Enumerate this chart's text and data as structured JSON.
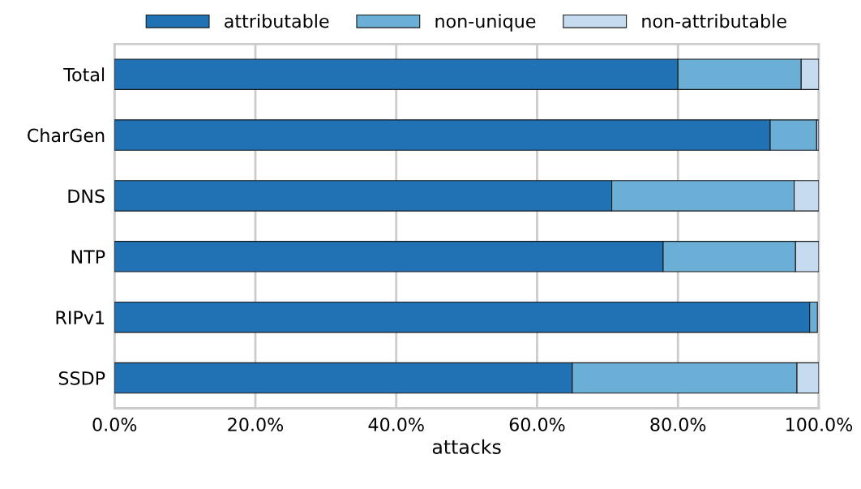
{
  "chart_data": {
    "type": "bar",
    "orientation": "horizontal",
    "stacked": true,
    "xlabel": "attacks",
    "categories": [
      "Total",
      "CharGen",
      "DNS",
      "NTP",
      "RIPv1",
      "SSDP"
    ],
    "series": [
      {
        "name": "attributable",
        "color": "#2171b5",
        "values": [
          80.0,
          93.1,
          70.6,
          77.9,
          98.7,
          65.0
        ]
      },
      {
        "name": "non-unique",
        "color": "#6baed6",
        "values": [
          17.5,
          6.6,
          25.9,
          18.8,
          1.1,
          31.9
        ]
      },
      {
        "name": "non-attributable",
        "color": "#c6dbef",
        "values": [
          2.5,
          0.3,
          3.5,
          3.3,
          null,
          3.1
        ]
      }
    ],
    "xlim": [
      0,
      100
    ],
    "xticks": [
      {
        "value": 0,
        "label": "0.0%"
      },
      {
        "value": 20,
        "label": "20.0%"
      },
      {
        "value": 40,
        "label": "40.0%"
      },
      {
        "value": 60,
        "label": "60.0%"
      },
      {
        "value": 80,
        "label": "80.0%"
      },
      {
        "value": 100,
        "label": "100.0%"
      }
    ],
    "grid": "x",
    "legend": "top"
  }
}
